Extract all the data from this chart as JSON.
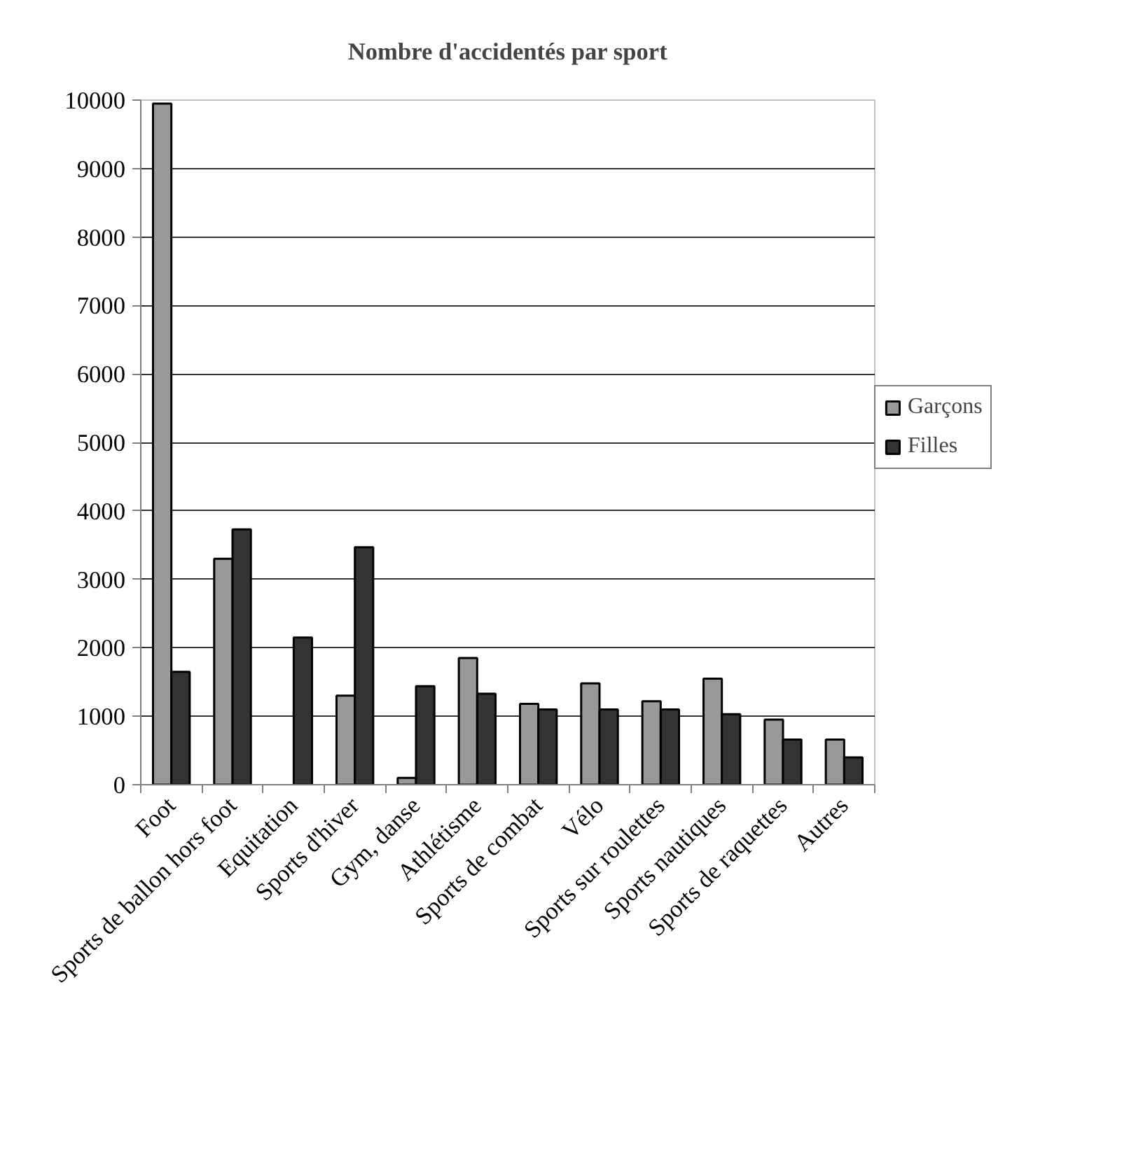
{
  "chart_data": {
    "type": "bar",
    "title": "Nombre d'accidentés par sport",
    "categories": [
      "Foot",
      "Sports de ballon hors foot",
      "Equitation",
      "Sports d'hiver",
      "Gym, danse",
      "Athlétisme",
      "Sports de combat",
      "Vélo",
      "Sports sur roulettes",
      "Sports nautiques",
      "Sports de raquettes",
      "Autres"
    ],
    "series": [
      {
        "name": "Garçons",
        "color": "#999999",
        "values": [
          9950,
          3300,
          null,
          1300,
          100,
          1850,
          1180,
          1480,
          1220,
          1550,
          950,
          660
        ]
      },
      {
        "name": "Filles",
        "color": "#333333",
        "values": [
          1650,
          3730,
          2150,
          3470,
          1440,
          1330,
          1100,
          1100,
          1100,
          1030,
          660,
          400
        ]
      }
    ],
    "ylim": [
      0,
      10000
    ],
    "yticks": [
      0,
      1000,
      2000,
      3000,
      4000,
      5000,
      6000,
      7000,
      8000,
      9000,
      10000
    ],
    "grid": "y",
    "legend": "right"
  }
}
